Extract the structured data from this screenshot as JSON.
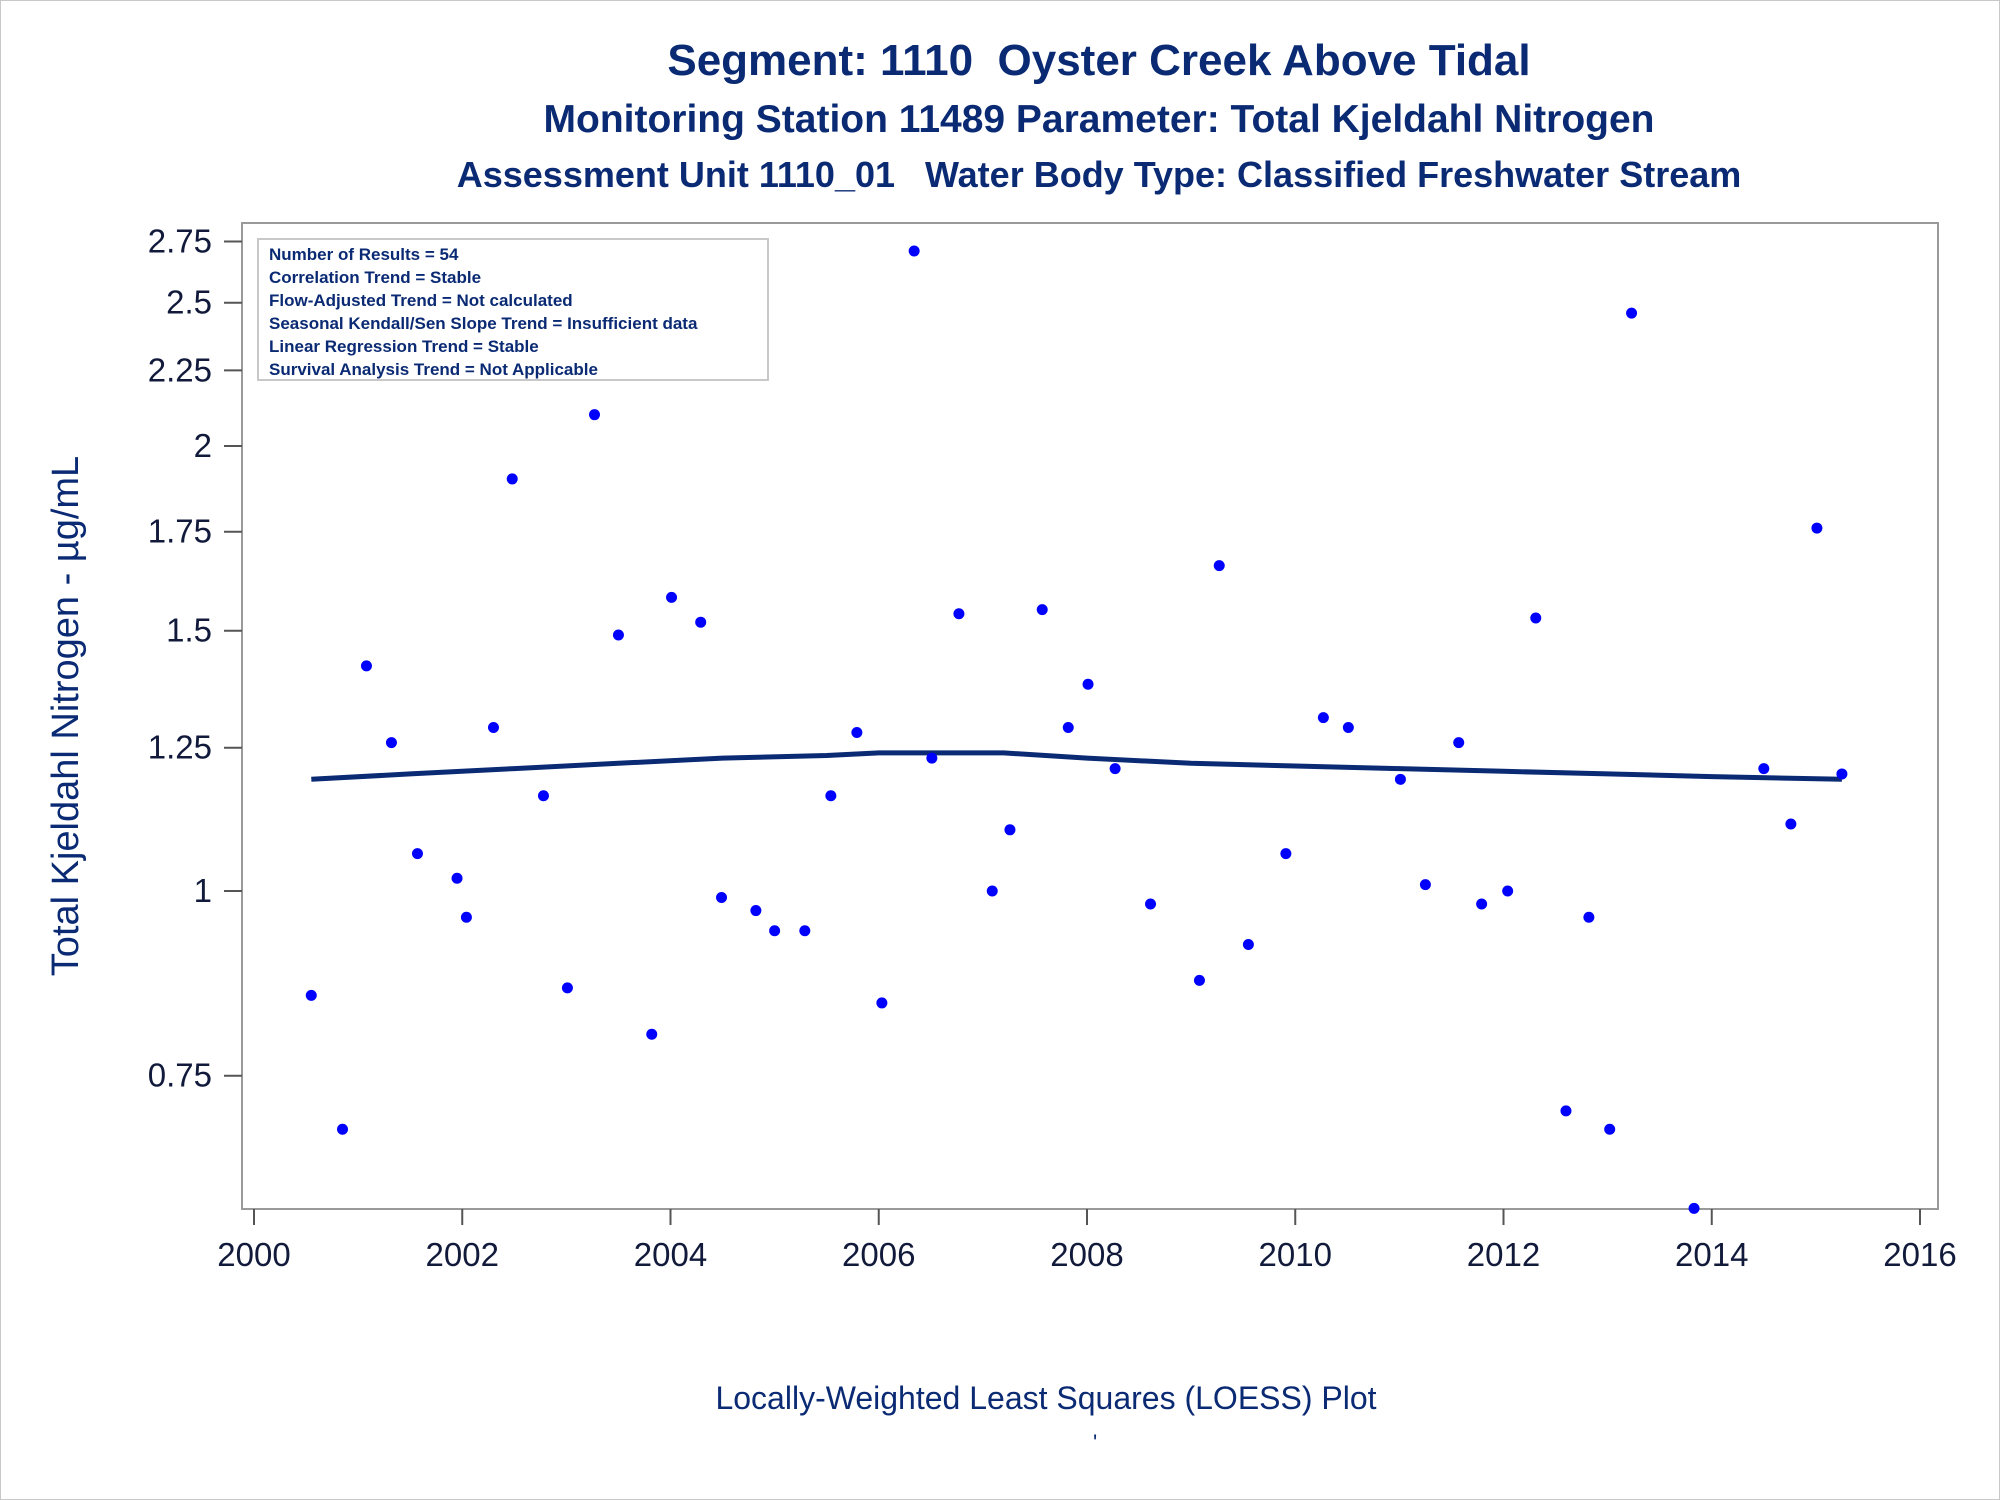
{
  "chart_data": {
    "type": "scatter",
    "title": "Segment: 1110  Oyster Creek Above Tidal",
    "subtitle": "Monitoring Station 11489 Parameter: Total Kjeldahl Nitrogen",
    "subtitle2": "Assessment Unit 1110_01   Water Body Type: Classified Freshwater Stream",
    "xlabel": "",
    "ylabel": "Total Kjeldahl Nitrogen -  µg/mL",
    "footnote": "Locally-Weighted Least Squares (LOESS) Plot",
    "footnote_mark": "'",
    "y_scale": "log",
    "xlim": [
      2000,
      2016
    ],
    "ylim": [
      0.6,
      2.8
    ],
    "x_ticks": [
      2000,
      2002,
      2004,
      2006,
      2008,
      2010,
      2012,
      2014,
      2016
    ],
    "y_ticks": [
      0.75,
      1,
      1.25,
      1.5,
      1.75,
      2,
      2.25,
      2.5,
      2.75
    ],
    "y_tick_labels": [
      "0.75",
      "1",
      "1.25",
      "1.5",
      "1.75",
      "2",
      "2.25",
      "2.5",
      "2.75"
    ],
    "grid": false,
    "legend_position": "top-left",
    "stats_box": [
      "Number of Results = 54",
      "Correlation Trend = Stable",
      "Flow-Adjusted Trend = Not calculated",
      "Seasonal Kendall/Sen Slope Trend = Insufficient data",
      "Linear Regression Trend = Stable",
      "Survival Analysis Trend = Not Applicable"
    ],
    "point_color": "#0000ff",
    "line_color": "#0b2a74",
    "points": [
      {
        "x": 2000.55,
        "y": 0.85
      },
      {
        "x": 2000.85,
        "y": 0.69
      },
      {
        "x": 2001.08,
        "y": 1.42
      },
      {
        "x": 2001.32,
        "y": 1.26
      },
      {
        "x": 2001.57,
        "y": 1.06
      },
      {
        "x": 2001.95,
        "y": 1.02
      },
      {
        "x": 2002.04,
        "y": 0.96
      },
      {
        "x": 2002.3,
        "y": 1.29
      },
      {
        "x": 2002.48,
        "y": 1.9
      },
      {
        "x": 2002.78,
        "y": 1.16
      },
      {
        "x": 2003.01,
        "y": 0.86
      },
      {
        "x": 2003.27,
        "y": 2.1
      },
      {
        "x": 2003.5,
        "y": 1.49
      },
      {
        "x": 2003.82,
        "y": 0.8
      },
      {
        "x": 2004.01,
        "y": 1.58
      },
      {
        "x": 2004.29,
        "y": 1.52
      },
      {
        "x": 2004.49,
        "y": 0.99
      },
      {
        "x": 2004.82,
        "y": 0.97
      },
      {
        "x": 2005.0,
        "y": 0.94
      },
      {
        "x": 2005.29,
        "y": 0.94
      },
      {
        "x": 2005.54,
        "y": 1.16
      },
      {
        "x": 2005.79,
        "y": 1.28
      },
      {
        "x": 2006.03,
        "y": 0.84
      },
      {
        "x": 2006.34,
        "y": 2.71
      },
      {
        "x": 2006.51,
        "y": 1.23
      },
      {
        "x": 2006.77,
        "y": 1.54
      },
      {
        "x": 2007.09,
        "y": 1.0
      },
      {
        "x": 2007.26,
        "y": 1.1
      },
      {
        "x": 2007.57,
        "y": 1.55
      },
      {
        "x": 2007.82,
        "y": 1.29
      },
      {
        "x": 2008.01,
        "y": 1.38
      },
      {
        "x": 2008.27,
        "y": 1.21
      },
      {
        "x": 2008.61,
        "y": 0.98
      },
      {
        "x": 2009.08,
        "y": 0.87
      },
      {
        "x": 2009.27,
        "y": 1.66
      },
      {
        "x": 2009.55,
        "y": 0.92
      },
      {
        "x": 2009.91,
        "y": 1.06
      },
      {
        "x": 2010.27,
        "y": 1.31
      },
      {
        "x": 2010.51,
        "y": 1.29
      },
      {
        "x": 2011.01,
        "y": 1.19
      },
      {
        "x": 2011.25,
        "y": 1.01
      },
      {
        "x": 2011.57,
        "y": 1.26
      },
      {
        "x": 2011.79,
        "y": 0.98
      },
      {
        "x": 2012.04,
        "y": 1.0
      },
      {
        "x": 2012.31,
        "y": 1.53
      },
      {
        "x": 2012.6,
        "y": 0.71
      },
      {
        "x": 2012.82,
        "y": 0.96
      },
      {
        "x": 2013.02,
        "y": 0.69
      },
      {
        "x": 2013.23,
        "y": 2.46
      },
      {
        "x": 2013.83,
        "y": 0.61
      },
      {
        "x": 2014.5,
        "y": 1.21
      },
      {
        "x": 2014.76,
        "y": 1.11
      },
      {
        "x": 2015.01,
        "y": 1.76
      },
      {
        "x": 2015.25,
        "y": 1.2
      }
    ],
    "loess": [
      {
        "x": 2000.55,
        "y": 1.19
      },
      {
        "x": 2001.5,
        "y": 1.2
      },
      {
        "x": 2002.5,
        "y": 1.21
      },
      {
        "x": 2003.5,
        "y": 1.22
      },
      {
        "x": 2004.5,
        "y": 1.23
      },
      {
        "x": 2005.5,
        "y": 1.235
      },
      {
        "x": 2006.0,
        "y": 1.24
      },
      {
        "x": 2007.2,
        "y": 1.24
      },
      {
        "x": 2008.0,
        "y": 1.23
      },
      {
        "x": 2009.0,
        "y": 1.22
      },
      {
        "x": 2010.0,
        "y": 1.215
      },
      {
        "x": 2011.0,
        "y": 1.21
      },
      {
        "x": 2012.0,
        "y": 1.205
      },
      {
        "x": 2013.0,
        "y": 1.2
      },
      {
        "x": 2014.0,
        "y": 1.195
      },
      {
        "x": 2015.25,
        "y": 1.19
      }
    ]
  }
}
